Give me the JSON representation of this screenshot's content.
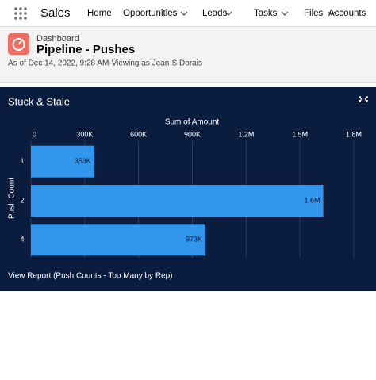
{
  "nav": {
    "app": "Sales",
    "items": [
      "Home",
      "Opportunities",
      "Leads",
      "Tasks",
      "Files",
      "Accounts"
    ]
  },
  "header": {
    "object": "Dashboard",
    "title": "Pipeline - Pushes",
    "subtitle": "As of Dec 14, 2022, 9:28 AM·Viewing as Jean-S Dorais"
  },
  "card": {
    "title": "Stuck & Stale",
    "link": "View Report (Push Counts - Too Many by Rep)"
  },
  "chart_data": {
    "type": "bar",
    "orientation": "horizontal",
    "x_label": "Sum of Amount",
    "y_label": "Push Count",
    "categories": [
      "1",
      "2",
      "4"
    ],
    "values": [
      353000,
      1630000,
      973000
    ],
    "value_labels": [
      "353K",
      "1.6M",
      "973K"
    ],
    "color": "#3296ed",
    "grid": true,
    "xlim": [
      0,
      1800000
    ],
    "xticks": [
      0,
      {
        "value": 300000,
        "label": "300K"
      },
      {
        "value": 600000,
        "label": "600K"
      },
      {
        "value": 900000,
        "label": "900K"
      },
      {
        "value": 1200000,
        "label": "1.2M"
      },
      {
        "value": 1500000,
        "label": "1.5M"
      },
      {
        "value": 1800000,
        "label": "1.8M"
      }
    ]
  }
}
